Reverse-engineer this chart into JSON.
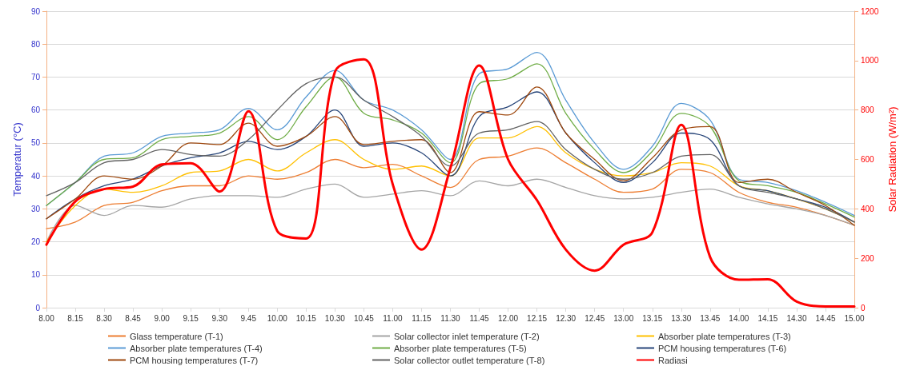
{
  "chart_data": {
    "type": "line",
    "ylabel": "Temperatur (°C)",
    "y2label": "Solar Radiation (W/m²)",
    "categories": [
      "8.00",
      "8.15",
      "8.30",
      "8.45",
      "9.00",
      "9.15",
      "9.30",
      "9.45",
      "10.00",
      "10.15",
      "10.30",
      "10.45",
      "11.00",
      "11.15",
      "11.30",
      "11.45",
      "12.00",
      "12.15",
      "12.30",
      "12.45",
      "13.00",
      "13.15",
      "13.30",
      "13.45",
      "14.00",
      "14.15",
      "14.30",
      "14.45",
      "15.00"
    ],
    "series": [
      {
        "name": "Glass temperature (T-1)",
        "color": "#ed7d31",
        "values": [
          24,
          26,
          31,
          32,
          35.5,
          37,
          37,
          40,
          39,
          41,
          45,
          42.5,
          43.5,
          40,
          36.5,
          45,
          46,
          48.5,
          44,
          39,
          35,
          36,
          42,
          41,
          35,
          32,
          30.5,
          28,
          25
        ]
      },
      {
        "name": "Solar collector inlet temperature (T-2)",
        "color": "#a5a5a5",
        "values": [
          20,
          31,
          28,
          31,
          30.5,
          33,
          34,
          34,
          33.5,
          36,
          37.5,
          33.5,
          34.5,
          35.5,
          34,
          38.5,
          37,
          39,
          36.5,
          34,
          33,
          33.5,
          35,
          36,
          33.5,
          31.5,
          30,
          28,
          25
        ]
      },
      {
        "name": "Absorber plate temperatures (T-3)",
        "color": "#ffc000",
        "values": [
          20,
          31,
          36,
          35,
          37,
          41,
          41.5,
          45,
          41.5,
          47,
          51,
          45,
          42,
          43,
          40,
          51.5,
          51.5,
          55,
          47,
          42,
          40,
          41,
          44,
          43,
          37,
          35.5,
          33,
          30,
          26
        ]
      },
      {
        "name": "Absorber plate temperatures (T-4)",
        "color": "#5b9bd5",
        "values": [
          31,
          38,
          46,
          47,
          52,
          53,
          54,
          60.5,
          54,
          64,
          72,
          63,
          60,
          54,
          45,
          71,
          72.5,
          77.5,
          63,
          50,
          42,
          49,
          62,
          57,
          39,
          38,
          35.5,
          32,
          28
        ]
      },
      {
        "name": "Absorber plate temperatures (T-5)",
        "color": "#70ad47",
        "values": [
          31,
          38,
          45,
          45.5,
          51,
          52,
          53,
          58,
          51,
          61,
          70,
          59,
          57,
          53,
          44,
          68,
          69.5,
          74,
          59,
          48,
          41,
          47.5,
          59,
          55,
          38.5,
          37,
          35,
          31.5,
          27.5
        ]
      },
      {
        "name": "PCM housing temperatures (T-6)",
        "color": "#264478",
        "values": [
          27,
          33,
          37,
          39,
          43,
          45.5,
          47,
          50.5,
          48,
          52,
          60,
          49,
          50,
          47,
          40,
          58,
          61,
          65.5,
          53,
          44,
          38,
          44,
          53,
          51,
          37,
          35.5,
          33,
          30.5,
          26
        ]
      },
      {
        "name": "PCM housing temperatures (T-7)",
        "color": "#9e480e",
        "values": [
          27,
          33,
          40,
          39,
          43,
          50,
          49.5,
          56,
          49,
          52,
          58,
          49.5,
          50.5,
          51,
          41,
          59.5,
          58.5,
          67,
          53,
          45,
          38.5,
          45.5,
          54,
          55,
          38,
          39,
          35,
          31,
          25
        ]
      },
      {
        "name": "Solar collector outlet temperature (T-8)",
        "color": "#636363",
        "values": [
          34,
          38,
          44,
          45,
          48,
          46.5,
          46,
          51,
          60,
          68,
          70,
          63,
          58,
          52,
          43,
          53,
          54,
          56.5,
          48,
          42,
          39,
          41,
          46,
          46.5,
          37,
          35,
          33,
          30,
          26
        ]
      },
      {
        "name": "Radiasi",
        "color": "#ff0000",
        "axis": "y2",
        "values": [
          255,
          430,
          480,
          490,
          580,
          585,
          470,
          795,
          310,
          280,
          955,
          1005,
          500,
          235,
          565,
          980,
          600,
          435,
          235,
          150,
          255,
          305,
          740,
          205,
          113,
          115,
          25,
          5,
          5
        ]
      }
    ],
    "ylim": [
      0,
      90
    ],
    "yticks": [
      0,
      10,
      20,
      30,
      40,
      50,
      60,
      70,
      80,
      90
    ],
    "y2lim": [
      0,
      1200
    ],
    "y2ticks": [
      0,
      200,
      400,
      600,
      800,
      1000,
      1200
    ],
    "grid": "y",
    "legend": "bottom",
    "marker": "none",
    "line_style": "solid"
  }
}
